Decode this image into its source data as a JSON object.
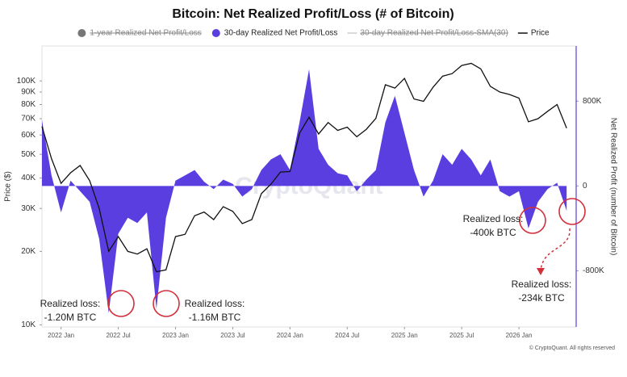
{
  "chart_data": {
    "type": "line",
    "title": "Bitcoin: Net Realized Profit/Loss (# of Bitcoin)",
    "y_label": "Price ($)",
    "y2_label": "Net Realized Profit (number of Bitcoin)",
    "watermark": "CryptoQuant",
    "footer": "© CryptoQuant. All rights reserved",
    "log_y": true,
    "x": [
      "2021-11",
      "2021-12",
      "2022-01",
      "2022-02",
      "2022-03",
      "2022-04",
      "2022-05",
      "2022-06",
      "2022-07",
      "2022-08",
      "2022-09",
      "2022-10",
      "2022-11",
      "2022-12",
      "2023-01",
      "2023-02",
      "2023-03",
      "2023-04",
      "2023-05",
      "2023-06",
      "2023-07",
      "2023-08",
      "2023-09",
      "2023-10",
      "2023-11",
      "2023-12",
      "2024-01",
      "2024-02",
      "2024-03",
      "2024-04",
      "2024-05",
      "2024-06",
      "2024-07",
      "2024-08",
      "2024-09",
      "2024-10",
      "2024-11",
      "2024-12",
      "2025-01",
      "2025-02",
      "2025-03",
      "2025-04",
      "2025-05",
      "2025-06",
      "2025-07",
      "2025-08",
      "2025-09",
      "2025-10",
      "2025-11",
      "2025-12",
      "2026-01",
      "2026-02",
      "2026-03",
      "2026-04",
      "2026-05",
      "2026-06"
    ],
    "xlim": [
      "2021-11",
      "2026-07"
    ],
    "xticks": [
      {
        "value": "2022-01",
        "label": "2022 Jan"
      },
      {
        "value": "2022-07",
        "label": "2022 Jul"
      },
      {
        "value": "2023-01",
        "label": "2023 Jan"
      },
      {
        "value": "2023-07",
        "label": "2023 Jul"
      },
      {
        "value": "2024-01",
        "label": "2024 Jan"
      },
      {
        "value": "2024-07",
        "label": "2024 Jul"
      },
      {
        "value": "2025-01",
        "label": "2025 Jan"
      },
      {
        "value": "2025-07",
        "label": "2025 Jul"
      },
      {
        "value": "2026-01",
        "label": "2026 Jan"
      }
    ],
    "ylim": [
      9800,
      139000
    ],
    "yticks": [
      {
        "value": 10000,
        "label": "10K"
      },
      {
        "value": 20000,
        "label": "20K"
      },
      {
        "value": 30000,
        "label": "30K"
      },
      {
        "value": 40000,
        "label": "40K"
      },
      {
        "value": 50000,
        "label": "50K"
      },
      {
        "value": 60000,
        "label": "60K"
      },
      {
        "value": 70000,
        "label": "70K"
      },
      {
        "value": 80000,
        "label": "80K"
      },
      {
        "value": 90000,
        "label": "90K"
      },
      {
        "value": 100000,
        "label": "100K"
      }
    ],
    "y2lim": [
      -1330000,
      1320000
    ],
    "y2ticks": [
      {
        "value": 800000,
        "label": "800K"
      },
      0,
      {
        "value": -800000,
        "label": "-800K"
      }
    ],
    "series": [
      {
        "name": "1-year Realized Net Profit/Loss",
        "color": "#777777",
        "hidden": true
      },
      {
        "name": "30-day Realized Net Profit/Loss",
        "color": "#5a3ee0",
        "axis": "y2",
        "kind": "area",
        "values": [
          620000,
          100000,
          -250000,
          50000,
          -50000,
          -150000,
          -500000,
          -1200000,
          -450000,
          -300000,
          -350000,
          -250000,
          -1160000,
          -300000,
          50000,
          100000,
          150000,
          40000,
          -30000,
          60000,
          20000,
          -100000,
          -30000,
          150000,
          250000,
          300000,
          150000,
          600000,
          1100000,
          350000,
          200000,
          120000,
          100000,
          -50000,
          60000,
          150000,
          600000,
          850000,
          500000,
          150000,
          -100000,
          50000,
          300000,
          200000,
          350000,
          250000,
          100000,
          250000,
          -50000,
          -100000,
          -50000,
          -400000,
          -150000,
          -30000,
          30000,
          -234000
        ]
      },
      {
        "name": "30-day Realized Net Profit/Loss-SMA(30)",
        "color": "#cccccc",
        "hidden": true
      },
      {
        "name": "Price",
        "color": "#111111",
        "kind": "line",
        "values": [
          65000,
          48000,
          38000,
          42000,
          45000,
          39000,
          30000,
          20000,
          23000,
          20000,
          19500,
          20500,
          16500,
          16800,
          23000,
          23500,
          28000,
          29000,
          27000,
          30500,
          29200,
          26000,
          27000,
          34500,
          37700,
          42300,
          42500,
          61000,
          71000,
          60600,
          67500,
          62700,
          64600,
          59000,
          63300,
          70200,
          96400,
          93400,
          102400,
          84300,
          82500,
          94200,
          104600,
          107100,
          115700,
          118000,
          112000,
          95000,
          90000,
          88000,
          85000,
          68000,
          70000,
          75000,
          80000,
          64000
        ]
      }
    ],
    "annotations": [
      {
        "lines": [
          "Realized loss:",
          "-1.20M BTC"
        ]
      },
      {
        "lines": [
          "Realized loss:",
          "-1.16M BTC"
        ]
      },
      {
        "lines": [
          "Realized loss:",
          "-400k BTC"
        ]
      },
      {
        "lines": [
          "Realized loss:",
          "-234k BTC"
        ]
      }
    ]
  }
}
